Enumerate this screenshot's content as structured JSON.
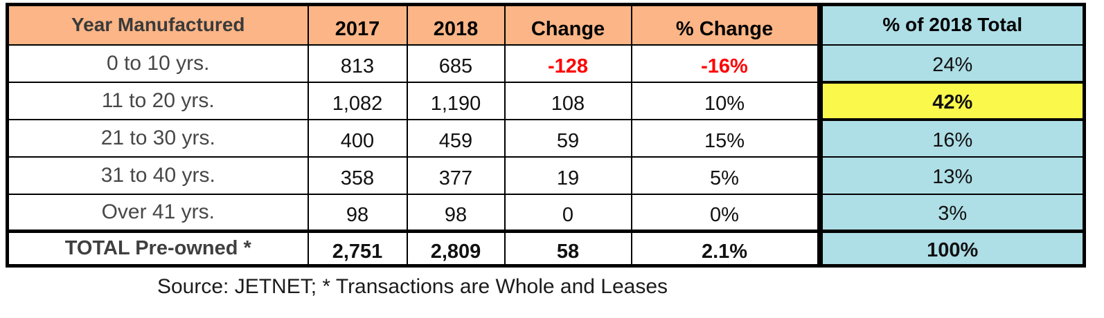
{
  "chart_data": {
    "type": "table",
    "columns": [
      "Year Manufactured",
      "2017",
      "2018",
      "Change",
      "% Change",
      "% of 2018 Total"
    ],
    "rows": [
      [
        "0 to 10 yrs.",
        "813",
        "685",
        "-128",
        "-16%",
        "24%"
      ],
      [
        "11 to 20 yrs.",
        "1,082",
        "1,190",
        "108",
        "10%",
        "42%"
      ],
      [
        "21 to 30 yrs.",
        "400",
        "459",
        "59",
        "15%",
        "16%"
      ],
      [
        "31 to 40 yrs.",
        "358",
        "377",
        "19",
        "5%",
        "13%"
      ],
      [
        "Over 41 yrs.",
        "98",
        "98",
        "0",
        "0%",
        "3%"
      ]
    ],
    "total_row": [
      "TOTAL Pre-owned *",
      "2,751",
      "2,809",
      "58",
      "2.1%",
      "100%"
    ],
    "annotations": {
      "negative_values": [
        "-128",
        "-16%"
      ],
      "highlighted_value": "42%",
      "highlighted_row": "11 to 20 yrs.",
      "highlighted_column": "% of 2018 Total"
    },
    "source": "Source: JETNET; * Transactions are Whole and Leases"
  },
  "colors": {
    "header_fill": "#FBB586",
    "total_column_fill": "#AEDEE6",
    "highlight_fill": "#FAF94B",
    "negative_text": "#FF0000",
    "border": "#000000"
  }
}
